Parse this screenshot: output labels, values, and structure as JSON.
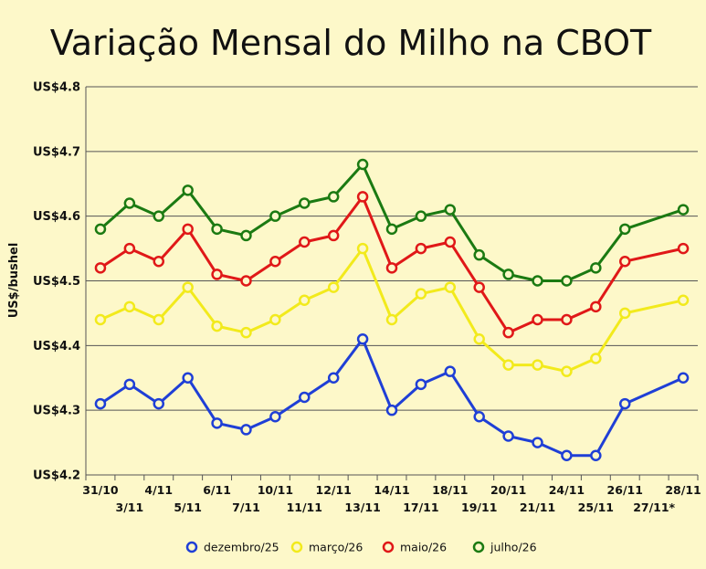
{
  "chart_data": {
    "type": "line",
    "title": "Variação Mensal do Milho na CBOT",
    "ylabel": "US$/bushel",
    "xlabel": "",
    "ylim": [
      4.2,
      4.8
    ],
    "yticks": [
      4.2,
      4.3,
      4.4,
      4.5,
      4.6,
      4.7,
      4.8
    ],
    "ytick_labels": [
      "US$4.2",
      "US$4.3",
      "US$4.4",
      "US$4.5",
      "US$4.6",
      "US$4.7",
      "US$4.8"
    ],
    "categories": [
      "31/10",
      "3/11",
      "4/11",
      "5/11",
      "6/11",
      "7/11",
      "10/11",
      "11/11",
      "12/11",
      "13/11",
      "14/11",
      "17/11",
      "18/11",
      "19/11",
      "20/11",
      "21/11",
      "24/11",
      "25/11",
      "26/11",
      "27/11*",
      "28/11"
    ],
    "grid": true,
    "legend_position": "bottom",
    "series": [
      {
        "name": "dezembro/25",
        "color": "#1f3fd6",
        "values": [
          4.31,
          4.34,
          4.31,
          4.35,
          4.28,
          4.27,
          4.29,
          4.32,
          4.35,
          4.41,
          4.3,
          4.34,
          4.36,
          4.29,
          4.26,
          4.25,
          4.23,
          4.23,
          4.31,
          null,
          4.35
        ]
      },
      {
        "name": "março/26",
        "color": "#f2ea1c",
        "values": [
          4.44,
          4.46,
          4.44,
          4.49,
          4.43,
          4.42,
          4.44,
          4.47,
          4.49,
          4.55,
          4.44,
          4.48,
          4.49,
          4.41,
          4.37,
          4.37,
          4.36,
          4.38,
          4.45,
          null,
          4.47
        ]
      },
      {
        "name": "maio/26",
        "color": "#e01818",
        "values": [
          4.52,
          4.55,
          4.53,
          4.58,
          4.51,
          4.5,
          4.53,
          4.56,
          4.57,
          4.63,
          4.52,
          4.55,
          4.56,
          4.49,
          4.42,
          4.44,
          4.44,
          4.46,
          4.53,
          null,
          4.55
        ]
      },
      {
        "name": "julho/26",
        "color": "#1b7a12",
        "values": [
          4.58,
          4.62,
          4.6,
          4.64,
          4.58,
          4.57,
          4.6,
          4.62,
          4.63,
          4.68,
          4.58,
          4.6,
          4.61,
          4.54,
          4.51,
          4.5,
          4.5,
          4.52,
          4.58,
          null,
          4.61
        ]
      }
    ]
  }
}
